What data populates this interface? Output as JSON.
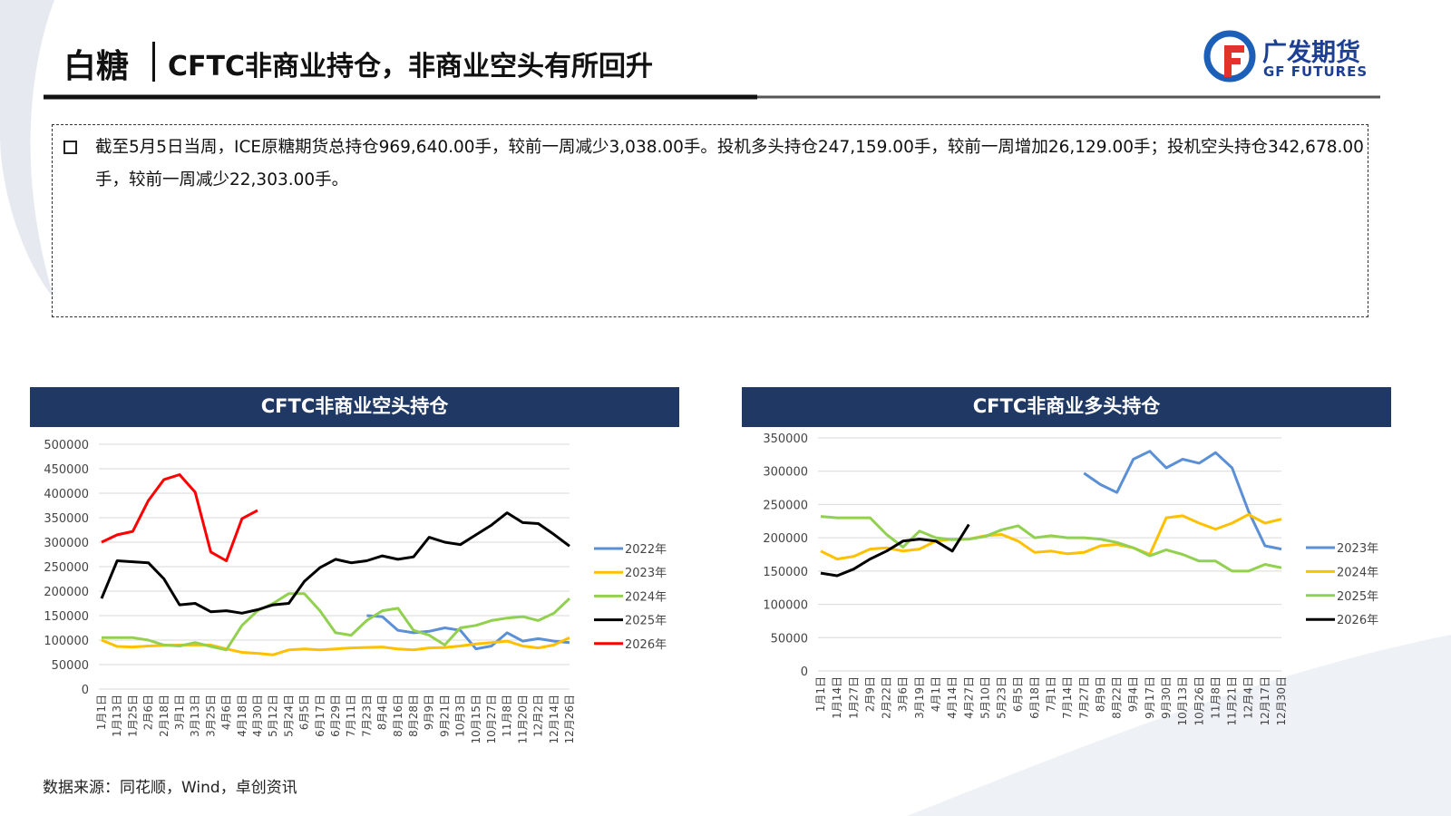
{
  "header": {
    "section": "白糖",
    "title": "CFTC非商业持仓，非商业空头有所回升",
    "logo_cn": "广发期货",
    "logo_en": "GF FUTURES"
  },
  "summary": "截至5月5日当周，ICE原糖期货总持仓969,640.00手，较前一周减少3,038.00手。投机多头持仓247,159.00手，较前一周增加26,129.00手；投机空头持仓342,678.00手，较前一周减少22,303.00手。",
  "source": "数据来源：同花顺，Wind，卓创资讯",
  "chart_data": [
    {
      "type": "line",
      "title": "CFTC非商业空头持仓",
      "grid": true,
      "legend": "right",
      "categories": [
        "1月1日",
        "1月13日",
        "1月25日",
        "2月6日",
        "2月18日",
        "3月1日",
        "3月13日",
        "3月25日",
        "4月6日",
        "4月18日",
        "4月30日",
        "5月12日",
        "5月24日",
        "6月5日",
        "6月17日",
        "6月29日",
        "7月11日",
        "7月23日",
        "8月4日",
        "8月16日",
        "8月28日",
        "9月9日",
        "9月21日",
        "10月3日",
        "10月15日",
        "10月27日",
        "11月8日",
        "11月20日",
        "12月2日",
        "12月14日",
        "12月26日"
      ],
      "ylim": [
        0,
        500000
      ],
      "yticks": [
        0,
        50000,
        100000,
        150000,
        200000,
        250000,
        300000,
        350000,
        400000,
        450000,
        500000
      ],
      "series": [
        {
          "name": "2022年",
          "color": "#5b8fd6",
          "values": [
            null,
            null,
            null,
            null,
            null,
            null,
            null,
            null,
            null,
            null,
            null,
            null,
            null,
            null,
            null,
            null,
            null,
            150000,
            148000,
            120000,
            115000,
            118000,
            125000,
            120000,
            82000,
            88000,
            115000,
            98000,
            103000,
            98000,
            95000
          ]
        },
        {
          "name": "2023年",
          "color": "#ffc000",
          "values": [
            100000,
            87000,
            86000,
            88000,
            89000,
            90000,
            90000,
            90000,
            82000,
            75000,
            73000,
            70000,
            80000,
            82000,
            80000,
            82000,
            84000,
            85000,
            86000,
            82000,
            80000,
            84000,
            85000,
            88000,
            92000,
            95000,
            98000,
            88000,
            84000,
            90000,
            105000
          ]
        },
        {
          "name": "2024年",
          "color": "#92d050",
          "values": [
            105000,
            105000,
            105000,
            100000,
            90000,
            88000,
            95000,
            87000,
            80000,
            130000,
            160000,
            175000,
            195000,
            195000,
            160000,
            115000,
            110000,
            140000,
            160000,
            165000,
            120000,
            110000,
            90000,
            125000,
            130000,
            140000,
            145000,
            148000,
            140000,
            155000,
            185000
          ]
        },
        {
          "name": "2025年",
          "color": "#000000",
          "values": [
            185000,
            262000,
            260000,
            258000,
            225000,
            172000,
            175000,
            158000,
            160000,
            155000,
            162000,
            172000,
            175000,
            220000,
            248000,
            265000,
            258000,
            262000,
            272000,
            265000,
            270000,
            310000,
            300000,
            295000,
            315000,
            335000,
            360000,
            340000,
            338000,
            316000,
            292000
          ]
        },
        {
          "name": "2026年",
          "color": "#ff0000",
          "values": [
            300000,
            315000,
            322000,
            385000,
            428000,
            438000,
            402000,
            280000,
            262000,
            348000,
            365000,
            null,
            null,
            null,
            null,
            null,
            null,
            null,
            null,
            null,
            null,
            null,
            null,
            null,
            null,
            null,
            null,
            null,
            null,
            null,
            null
          ]
        }
      ]
    },
    {
      "type": "line",
      "title": "CFTC非商业多头持仓",
      "grid": true,
      "legend": "right",
      "categories": [
        "1月1日",
        "1月14日",
        "1月27日",
        "2月9日",
        "2月22日",
        "3月6日",
        "3月19日",
        "4月1日",
        "4月14日",
        "4月27日",
        "5月10日",
        "5月23日",
        "6月5日",
        "6月18日",
        "7月1日",
        "7月14日",
        "7月27日",
        "8月9日",
        "8月22日",
        "9月4日",
        "9月17日",
        "9月30日",
        "10月13日",
        "10月26日",
        "11月8日",
        "11月21日",
        "12月4日",
        "12月17日",
        "12月30日"
      ],
      "ylim": [
        0,
        350000
      ],
      "yticks": [
        0,
        50000,
        100000,
        150000,
        200000,
        250000,
        300000,
        350000
      ],
      "series": [
        {
          "name": "2023年",
          "color": "#5b8fd6",
          "values": [
            null,
            null,
            null,
            null,
            null,
            null,
            null,
            null,
            null,
            null,
            null,
            null,
            null,
            null,
            null,
            null,
            297000,
            280000,
            268000,
            318000,
            330000,
            305000,
            318000,
            312000,
            328000,
            305000,
            240000,
            188000,
            183000
          ]
        },
        {
          "name": "2024年",
          "color": "#ffc000",
          "values": [
            180000,
            168000,
            172000,
            183000,
            185000,
            180000,
            183000,
            195000,
            198000,
            198000,
            203000,
            205000,
            195000,
            178000,
            180000,
            176000,
            178000,
            188000,
            190000,
            185000,
            175000,
            230000,
            233000,
            222000,
            213000,
            222000,
            235000,
            222000,
            228000
          ]
        },
        {
          "name": "2025年",
          "color": "#92d050",
          "values": [
            232000,
            230000,
            230000,
            230000,
            205000,
            186000,
            210000,
            200000,
            197000,
            198000,
            202000,
            212000,
            218000,
            200000,
            203000,
            200000,
            200000,
            198000,
            193000,
            185000,
            173000,
            182000,
            175000,
            165000,
            165000,
            150000,
            150000,
            160000,
            155000
          ]
        },
        {
          "name": "2026年",
          "color": "#000000",
          "values": [
            147000,
            143000,
            153000,
            168000,
            180000,
            195000,
            198000,
            195000,
            180000,
            220000,
            null,
            null,
            null,
            null,
            null,
            null,
            null,
            null,
            null,
            null,
            null,
            null,
            null,
            null,
            null,
            null,
            null,
            null,
            null
          ]
        }
      ]
    }
  ]
}
